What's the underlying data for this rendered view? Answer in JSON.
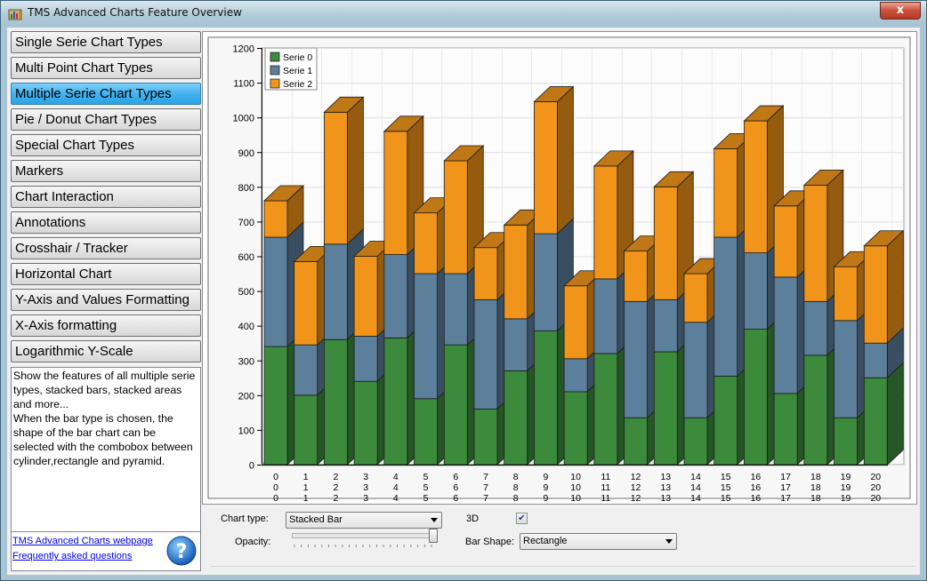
{
  "window": {
    "title": "TMS Advanced Charts Feature Overview",
    "close_glyph": "x"
  },
  "sidebar": {
    "items": [
      {
        "label": "Single Serie Chart Types",
        "active": false
      },
      {
        "label": "Multi Point Chart Types",
        "active": false
      },
      {
        "label": "Multiple Serie Chart Types",
        "active": true
      },
      {
        "label": "Pie / Donut Chart Types",
        "active": false
      },
      {
        "label": "Special Chart Types",
        "active": false
      },
      {
        "label": "Markers",
        "active": false
      },
      {
        "label": "Chart Interaction",
        "active": false
      },
      {
        "label": "Annotations",
        "active": false
      },
      {
        "label": "Crosshair / Tracker",
        "active": false
      },
      {
        "label": "Horizontal Chart",
        "active": false
      },
      {
        "label": "Y-Axis and Values Formatting",
        "active": false
      },
      {
        "label": "X-Axis formatting",
        "active": false
      },
      {
        "label": "Logarithmic Y-Scale",
        "active": false
      }
    ],
    "description": "Show the features of all multiple serie types, stacked bars, stacked areas and more...\nWhen the bar type is chosen, the shape of the bar chart can be selected with the combobox between cylinder,rectangle and pyramid.",
    "links": {
      "webpage": "TMS Advanced Charts webpage",
      "faq": "Frequently asked questions"
    },
    "help_icon": "help-question-icon"
  },
  "controls": {
    "chart_type_label": "Chart type:",
    "chart_type_value": "Stacked Bar",
    "opacity_label": "Opacity:",
    "opacity_value": 1.0,
    "threed_label": "3D",
    "threed_checked": true,
    "bar_shape_label": "Bar Shape:",
    "bar_shape_value": "Rectangle"
  },
  "chart_data": {
    "type": "bar",
    "stacked": true,
    "three_d": true,
    "ylim": [
      0,
      1200
    ],
    "yticks": [
      0,
      100,
      200,
      300,
      400,
      500,
      600,
      700,
      800,
      900,
      1000,
      1100,
      1200
    ],
    "grid": true,
    "legend_position": "top-left",
    "categories": [
      "0",
      "1",
      "2",
      "3",
      "4",
      "5",
      "6",
      "7",
      "8",
      "9",
      "10",
      "11",
      "12",
      "13",
      "14",
      "15",
      "16",
      "17",
      "18",
      "19",
      "20"
    ],
    "series": [
      {
        "name": "Serie 0",
        "color": "#3c8a3c",
        "values": [
          340,
          200,
          360,
          240,
          365,
          190,
          345,
          160,
          270,
          385,
          210,
          320,
          135,
          325,
          135,
          255,
          390,
          205,
          315,
          135,
          250
        ]
      },
      {
        "name": "Serie 1",
        "color": "#5c7f9c",
        "values": [
          315,
          145,
          275,
          130,
          240,
          360,
          205,
          315,
          150,
          280,
          95,
          215,
          335,
          150,
          275,
          400,
          220,
          335,
          155,
          280,
          100
        ]
      },
      {
        "name": "Serie 2",
        "color": "#f0951a",
        "values": [
          105,
          240,
          380,
          230,
          355,
          175,
          325,
          150,
          270,
          380,
          210,
          325,
          145,
          325,
          140,
          255,
          380,
          205,
          335,
          155,
          280
        ]
      }
    ]
  }
}
